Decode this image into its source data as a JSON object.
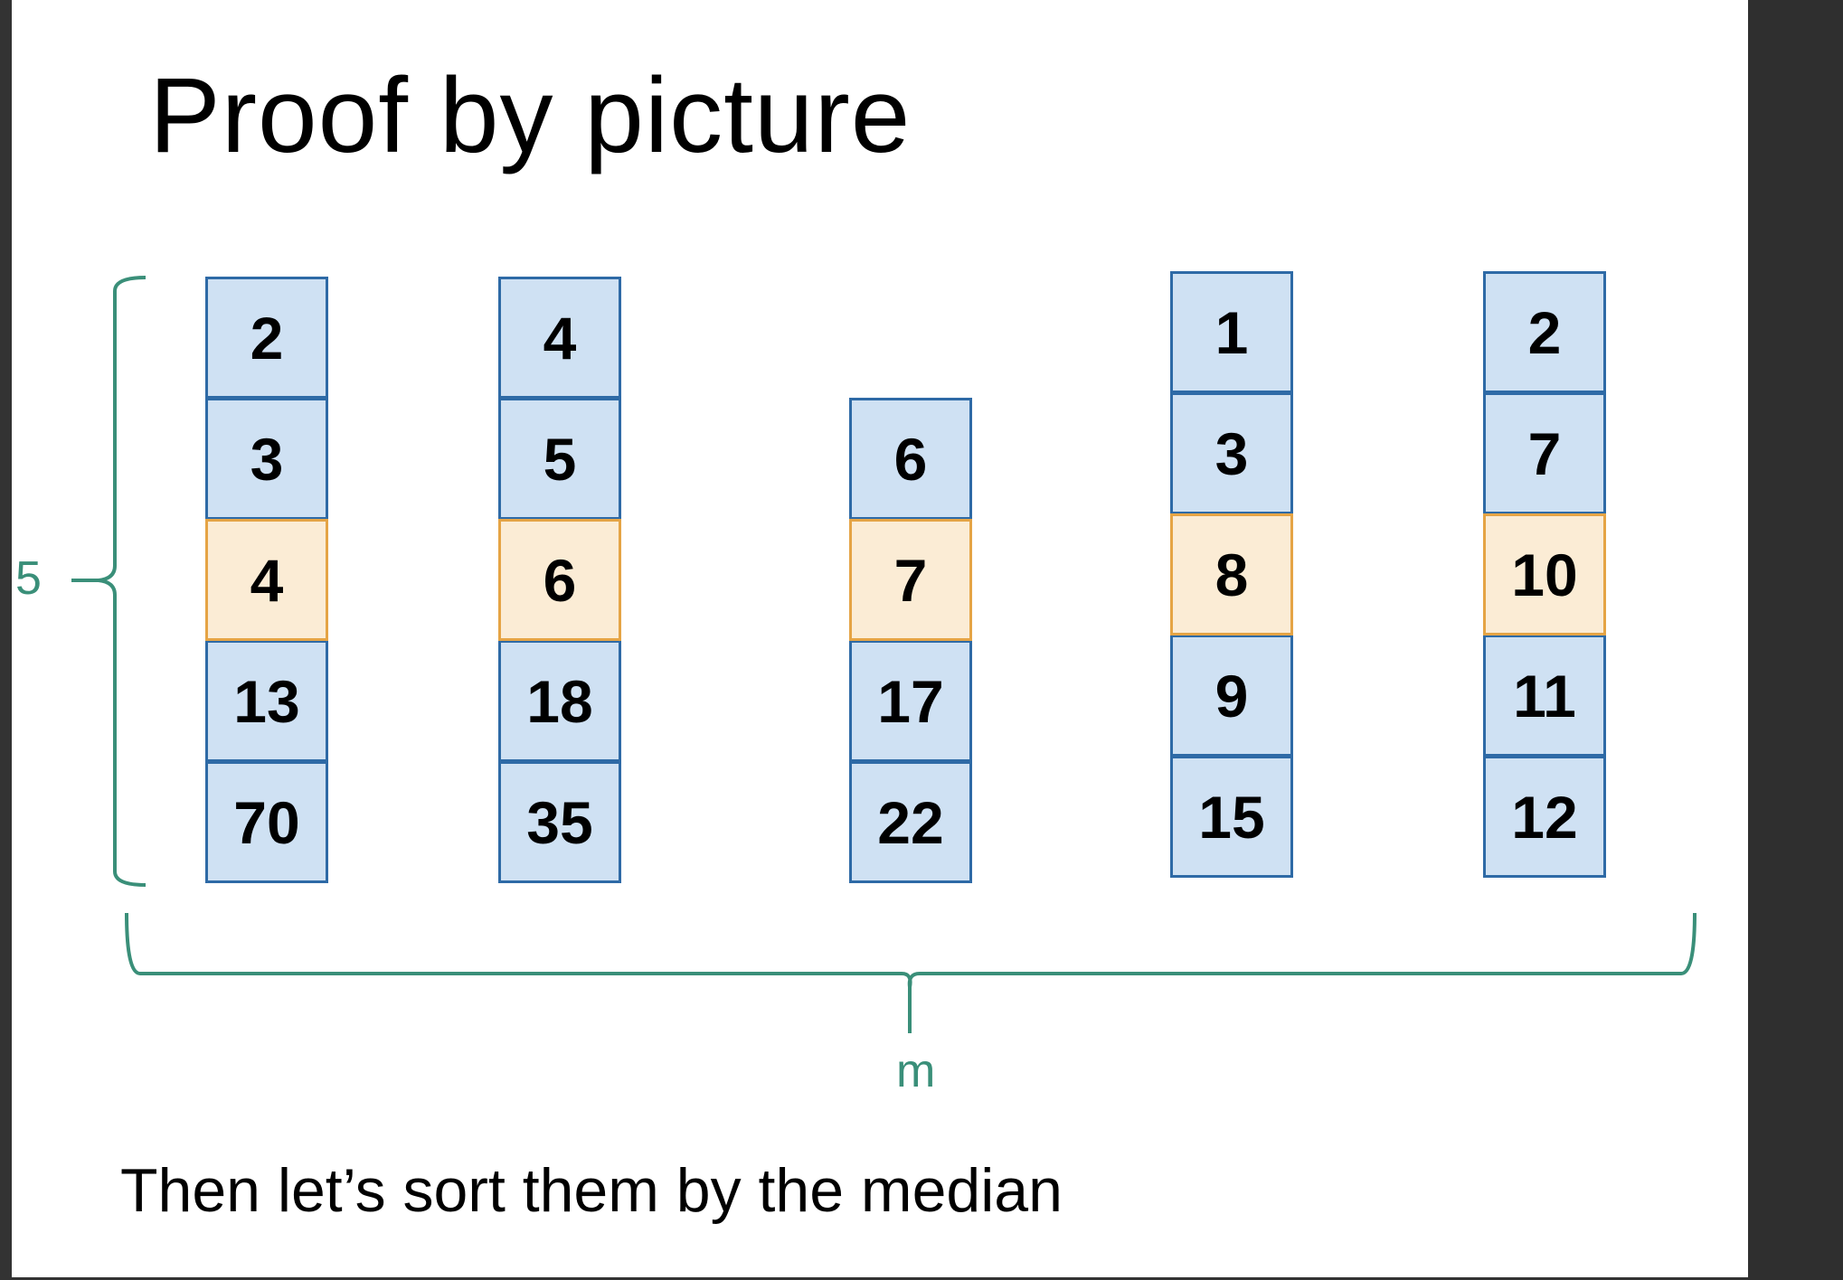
{
  "title": "Proof by picture",
  "caption": "Then let’s sort them by the median",
  "brace_labels": {
    "vertical": "5",
    "horizontal": "m"
  },
  "colors": {
    "cell_fill": "#cfe1f3",
    "cell_border": "#2e6aa6",
    "median_fill": "#fbecd5",
    "median_border": "#e5a445",
    "brace": "#3a8f79"
  },
  "columns": [
    {
      "values": [
        "2",
        "3",
        "4",
        "13",
        "70"
      ],
      "median_index": 2
    },
    {
      "values": [
        "4",
        "5",
        "6",
        "18",
        "35"
      ],
      "median_index": 2
    },
    {
      "values": [
        "6",
        "7",
        "17",
        "22"
      ],
      "median_index": 1
    },
    {
      "values": [
        "1",
        "3",
        "8",
        "9",
        "15"
      ],
      "median_index": 2
    },
    {
      "values": [
        "2",
        "7",
        "10",
        "11",
        "12"
      ],
      "median_index": 2
    }
  ]
}
